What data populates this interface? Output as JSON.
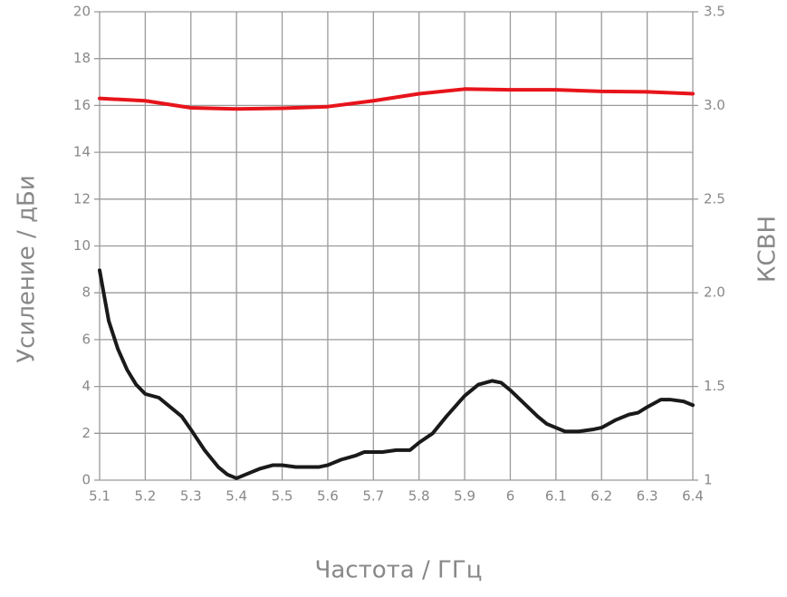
{
  "chart_data": {
    "type": "line",
    "xlabel": "Частота / ГГц",
    "ylabel": "Усиление / дБи",
    "y2label": "КСВН",
    "xlim": [
      5.1,
      6.4
    ],
    "xticks": [
      5.1,
      5.2,
      5.3,
      5.4,
      5.5,
      5.6,
      5.7,
      5.8,
      5.9,
      6,
      6.1,
      6.2,
      6.3,
      6.4
    ],
    "ylim": [
      0,
      20
    ],
    "yticks": [
      0,
      2,
      4,
      6,
      8,
      10,
      12,
      14,
      16,
      18,
      20
    ],
    "y2lim": [
      1,
      3.5
    ],
    "y2ticks": [
      1,
      1.5,
      {
        "value": 2,
        "label": "2.0"
      },
      2.5,
      {
        "value": 3,
        "label": "3.0"
      },
      3.5
    ],
    "grid": true,
    "series": [
      {
        "color": "#e8141b",
        "x": [
          5.1,
          5.2,
          5.3,
          5.4,
          5.5,
          5.6,
          5.7,
          5.8,
          5.9,
          6.0,
          6.1,
          6.2,
          6.3,
          6.4
        ],
        "values": [
          16.3,
          16.2,
          15.9,
          15.85,
          15.88,
          15.95,
          16.2,
          16.5,
          16.7,
          16.67,
          16.67,
          16.6,
          16.58,
          16.5
        ]
      },
      {
        "color": "#1a1a1a",
        "axis": "y2",
        "x": [
          5.1,
          5.12,
          5.14,
          5.16,
          5.18,
          5.2,
          5.23,
          5.25,
          5.28,
          5.3,
          5.33,
          5.36,
          5.38,
          5.4,
          5.42,
          5.45,
          5.48,
          5.5,
          5.53,
          5.58,
          5.6,
          5.63,
          5.66,
          5.68,
          5.72,
          5.75,
          5.78,
          5.8,
          5.83,
          5.86,
          5.9,
          5.93,
          5.96,
          5.98,
          6.0,
          6.03,
          6.06,
          6.08,
          6.12,
          6.15,
          6.18,
          6.2,
          6.23,
          6.26,
          6.28,
          6.3,
          6.33,
          6.35,
          6.38,
          6.4
        ],
        "values": [
          2.12,
          1.85,
          1.7,
          1.59,
          1.51,
          1.46,
          1.44,
          1.4,
          1.34,
          1.27,
          1.16,
          1.07,
          1.03,
          1.01,
          1.03,
          1.06,
          1.08,
          1.08,
          1.07,
          1.07,
          1.08,
          1.11,
          1.13,
          1.15,
          1.15,
          1.16,
          1.16,
          1.2,
          1.25,
          1.34,
          1.45,
          1.51,
          1.53,
          1.52,
          1.48,
          1.41,
          1.34,
          1.3,
          1.26,
          1.26,
          1.27,
          1.28,
          1.32,
          1.35,
          1.36,
          1.39,
          1.43,
          1.43,
          1.42,
          1.4
        ]
      }
    ]
  }
}
